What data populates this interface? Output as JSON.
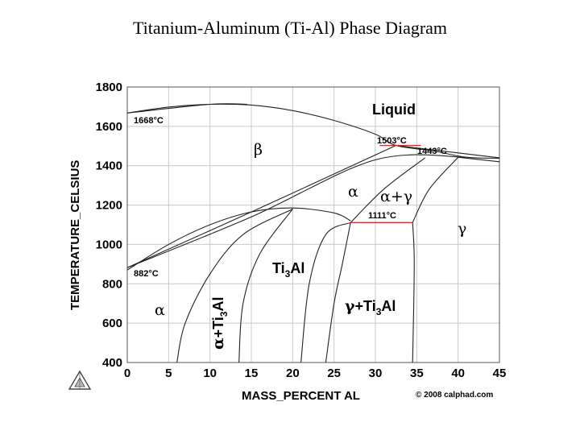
{
  "title": "Titanium-Aluminum (Ti-Al) Phase Diagram",
  "axes": {
    "xlabel": "MASS_PERCENT AL",
    "ylabel": "TEMPERATURE_CELSIUS",
    "x_ticks": [
      "0",
      "5",
      "10",
      "15",
      "20",
      "25",
      "30",
      "35",
      "40",
      "45"
    ],
    "y_ticks": [
      "400",
      "600",
      "800",
      "1000",
      "1200",
      "1400",
      "1600",
      "1800"
    ],
    "xlim": [
      0,
      45
    ],
    "ylim": [
      400,
      1800
    ]
  },
  "annotations": {
    "t1668": "1668°C",
    "t882": "882°C",
    "t1503": "1503°C",
    "t1443": "1443°C",
    "t1111": "1111°C"
  },
  "regions": {
    "liquid": "Liquid",
    "beta": "β",
    "alpha_upper": "α",
    "alpha_gamma": "α+γ",
    "gamma": "γ",
    "ti3al": "Ti3Al",
    "gamma_ti3al": "γ+Ti3Al",
    "alpha_lower": "α",
    "alpha_ti3al": "α+Ti3Al"
  },
  "credit": "© 2008 calphad.com",
  "logo_icon": "calphad-logo-icon",
  "chart_data": {
    "type": "phase-diagram",
    "xlabel": "MASS_PERCENT AL",
    "ylabel": "TEMPERATURE_CELSIUS",
    "xlim": [
      0,
      45
    ],
    "ylim": [
      400,
      1800
    ],
    "grid": true,
    "curves": [
      {
        "name": "liquidus",
        "points": [
          [
            0,
            1668
          ],
          [
            5,
            1698
          ],
          [
            10,
            1712
          ],
          [
            15,
            1708
          ],
          [
            20,
            1680
          ],
          [
            25,
            1630
          ],
          [
            30,
            1560
          ],
          [
            32.5,
            1503
          ],
          [
            37,
            1475
          ],
          [
            41,
            1443
          ],
          [
            45,
            1438
          ]
        ]
      },
      {
        "name": "beta-solidus",
        "points": [
          [
            0,
            1668
          ],
          [
            10,
            1712
          ],
          [
            14.5,
            1712
          ]
        ]
      },
      {
        "name": "beta-transus-upper",
        "points": [
          [
            0,
            882
          ],
          [
            15,
            1165
          ],
          [
            32.5,
            1503
          ]
        ]
      },
      {
        "name": "beta-transus-lower",
        "points": [
          [
            0,
            882
          ],
          [
            15,
            1140
          ],
          [
            30,
            1430
          ],
          [
            41,
            1443
          ]
        ]
      },
      {
        "name": "beta-to-liquid-right",
        "points": [
          [
            32.5,
            1503
          ],
          [
            45,
            1440
          ]
        ]
      },
      {
        "name": "alpha-boundary",
        "points": [
          [
            0,
            870
          ],
          [
            5,
            1000
          ],
          [
            10,
            1100
          ],
          [
            15,
            1165
          ],
          [
            20,
            1185
          ],
          [
            25,
            1160
          ],
          [
            27,
            1120
          ]
        ]
      },
      {
        "name": "alpha-gamma-left",
        "points": [
          [
            27,
            1111
          ],
          [
            31,
            1280
          ],
          [
            36,
            1440
          ]
        ]
      },
      {
        "name": "alpha-gamma-right",
        "points": [
          [
            34.5,
            1111
          ],
          [
            36.5,
            1280
          ],
          [
            40,
            1443
          ]
        ]
      },
      {
        "name": "ti3al-left",
        "points": [
          [
            13.5,
            400
          ],
          [
            14,
            700
          ],
          [
            16,
            950
          ],
          [
            20,
            1180
          ]
        ]
      },
      {
        "name": "ti3al-right",
        "points": [
          [
            21,
            400
          ],
          [
            22,
            800
          ],
          [
            24,
            1050
          ],
          [
            27,
            1111
          ]
        ]
      },
      {
        "name": "alpha-ti3al-solvus",
        "points": [
          [
            6,
            400
          ],
          [
            7,
            600
          ],
          [
            10,
            850
          ],
          [
            14,
            1050
          ],
          [
            20,
            1180
          ]
        ]
      },
      {
        "name": "gamma-left",
        "points": [
          [
            27,
            1111
          ],
          [
            26,
            900
          ],
          [
            25,
            700
          ],
          [
            24,
            400
          ]
        ]
      },
      {
        "name": "gamma-right",
        "points": [
          [
            34.5,
            1111
          ],
          [
            34.7,
            900
          ],
          [
            34.5,
            400
          ]
        ]
      },
      {
        "name": "gamma-upper-right",
        "points": [
          [
            40,
            1443
          ],
          [
            45,
            1420
          ]
        ]
      }
    ],
    "eutectoid": {
      "temperature": 1111,
      "x_range": [
        27,
        34.5
      ]
    },
    "peritectic": {
      "temperature": 1503,
      "x_range": [
        30.5,
        35.5
      ]
    }
  }
}
